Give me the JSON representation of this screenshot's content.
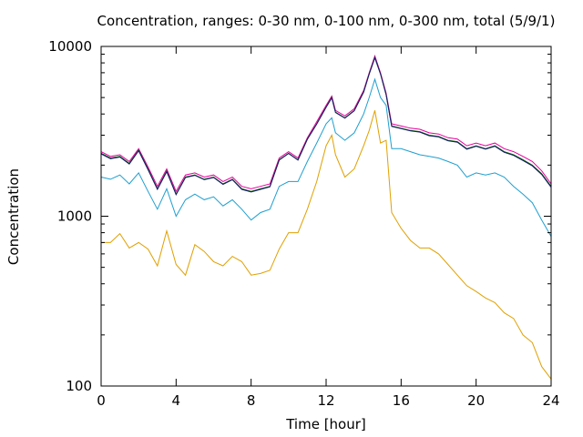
{
  "chart_data": {
    "type": "line",
    "title": "Concentration, ranges: 0-30 nm, 0-100 nm, 0-300 nm, total (5/9/1)",
    "xlabel": "Time [hour]",
    "ylabel": "Concentration",
    "xlim": [
      0,
      24
    ],
    "ylim": [
      100,
      10000
    ],
    "yscale": "log",
    "grid": false,
    "legend": "none",
    "x_ticks": [
      "0",
      "4",
      "8",
      "12",
      "16",
      "20",
      "24"
    ],
    "x_tick_values": [
      0,
      4,
      8,
      12,
      16,
      20,
      24
    ],
    "y_ticks": [
      "100",
      "1000",
      "10000"
    ],
    "y_tick_values": [
      100,
      1000,
      10000
    ],
    "x": [
      0,
      0.5,
      1,
      1.5,
      2,
      2.5,
      3,
      3.5,
      4,
      4.5,
      5,
      5.5,
      6,
      6.5,
      7,
      7.5,
      8,
      8.5,
      9,
      9.5,
      10,
      10.5,
      11,
      11.5,
      12,
      12.3,
      12.5,
      13,
      13.5,
      14,
      14.3,
      14.6,
      14.9,
      15.2,
      15.5,
      16,
      16.5,
      17,
      17.5,
      18,
      18.5,
      19,
      19.5,
      20,
      20.5,
      21,
      21.5,
      22,
      22.5,
      23,
      23.5,
      24
    ],
    "series": [
      {
        "color": "#e6009e",
        "values": [
          2400,
          2250,
          2300,
          2100,
          2500,
          1950,
          1500,
          1900,
          1400,
          1750,
          1800,
          1700,
          1750,
          1600,
          1700,
          1500,
          1450,
          1500,
          1550,
          2200,
          2400,
          2200,
          2900,
          3600,
          4500,
          5100,
          4200,
          3900,
          4300,
          5500,
          7000,
          8800,
          7000,
          5300,
          3500,
          3400,
          3300,
          3250,
          3100,
          3050,
          2900,
          2850,
          2600,
          2700,
          2600,
          2700,
          2500,
          2400,
          2250,
          2100,
          1850,
          1550
        ]
      },
      {
        "color": "#006400",
        "values": [
          2350,
          2200,
          2250,
          2050,
          2450,
          1900,
          1450,
          1850,
          1350,
          1700,
          1750,
          1650,
          1700,
          1550,
          1650,
          1450,
          1400,
          1450,
          1500,
          2150,
          2350,
          2150,
          2850,
          3500,
          4400,
          5000,
          4100,
          3800,
          4200,
          5400,
          6900,
          8600,
          6900,
          5200,
          3400,
          3300,
          3200,
          3150,
          3000,
          2950,
          2800,
          2750,
          2500,
          2600,
          2500,
          2600,
          2400,
          2300,
          2150,
          2000,
          1780,
          1500
        ]
      },
      {
        "color": "#191970",
        "values": [
          2330,
          2180,
          2230,
          2030,
          2430,
          1880,
          1440,
          1830,
          1340,
          1690,
          1740,
          1640,
          1690,
          1540,
          1640,
          1440,
          1390,
          1440,
          1490,
          2140,
          2340,
          2140,
          2840,
          3490,
          4380,
          4980,
          4080,
          3780,
          4180,
          5380,
          6880,
          8580,
          6880,
          5180,
          3380,
          3280,
          3180,
          3130,
          2980,
          2930,
          2780,
          2730,
          2480,
          2580,
          2480,
          2580,
          2380,
          2280,
          2130,
          1980,
          1760,
          1480
        ]
      },
      {
        "color": "#1e9fd0",
        "values": [
          1700,
          1650,
          1750,
          1550,
          1800,
          1400,
          1100,
          1450,
          1000,
          1250,
          1350,
          1250,
          1300,
          1150,
          1250,
          1100,
          950,
          1050,
          1100,
          1500,
          1600,
          1600,
          2100,
          2700,
          3500,
          3800,
          3100,
          2800,
          3100,
          4000,
          5000,
          6400,
          5000,
          4500,
          2500,
          2500,
          2400,
          2300,
          2250,
          2200,
          2100,
          2000,
          1700,
          1800,
          1750,
          1800,
          1700,
          1500,
          1350,
          1200,
          950,
          760
        ]
      },
      {
        "color": "#e0a000",
        "values": [
          700,
          700,
          790,
          650,
          700,
          640,
          510,
          820,
          520,
          450,
          680,
          620,
          540,
          510,
          580,
          540,
          450,
          460,
          480,
          640,
          800,
          800,
          1100,
          1600,
          2600,
          3000,
          2300,
          1700,
          1900,
          2600,
          3200,
          4200,
          2700,
          2800,
          1050,
          850,
          720,
          650,
          650,
          600,
          520,
          450,
          390,
          360,
          330,
          310,
          270,
          250,
          200,
          180,
          130,
          110
        ]
      }
    ]
  }
}
